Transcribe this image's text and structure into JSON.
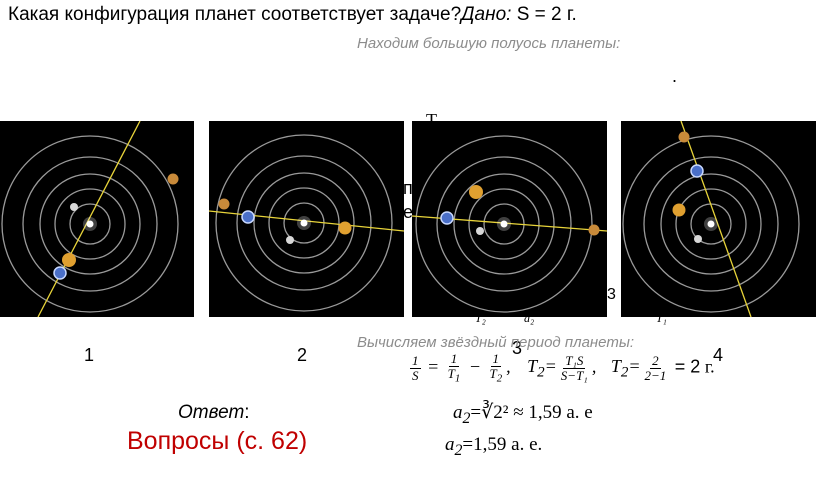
{
  "slide": {
    "question": "Какая конфигурация планет соответствует задаче?",
    "given_label": "Дано:",
    "given_value": "S = 2 г.",
    "step1": "Находим большую полуось планеты:",
    "dot": ".",
    "step2": "Вычисляем звёздный период планеты:",
    "labels": [
      "1",
      "2",
      "3",
      "4"
    ],
    "answer_label": "Ответ",
    "answer_colon": ":",
    "questions_link": "Вопросы (с. 62)",
    "partial_glyphs": {
      "t": "T",
      "p": "п",
      "e": "е",
      "z3": "3"
    },
    "eq1": {
      "one": "1",
      "S": "S",
      "T1": "T",
      "T2": "T",
      "sub1": "1",
      "sub2": "2"
    },
    "eq2": {
      "T2": "T",
      "sub2": "2",
      "num": "T₁S",
      "den": "S−T₁"
    },
    "eq3": {
      "T2": "T",
      "sub2": "2",
      "num": "2",
      "den": "2−1",
      "result": "= 2",
      "unit": "г."
    },
    "eq4": {
      "a": "a",
      "sub": "2",
      "text": "=∛2² ≈ 1,59 a. e"
    },
    "eq5": {
      "a": "a",
      "sub": "2",
      "text": "=1,59 a. e."
    },
    "cut_row": {
      "t2": "T₂",
      "a2": "a₂",
      "t1": "T₁"
    }
  },
  "colors": {
    "panel_bg": "#000000",
    "orbit": "#9a9a9a",
    "line": "#e8d43a",
    "red": "#c00000",
    "gray_text": "#8c8c8c"
  }
}
